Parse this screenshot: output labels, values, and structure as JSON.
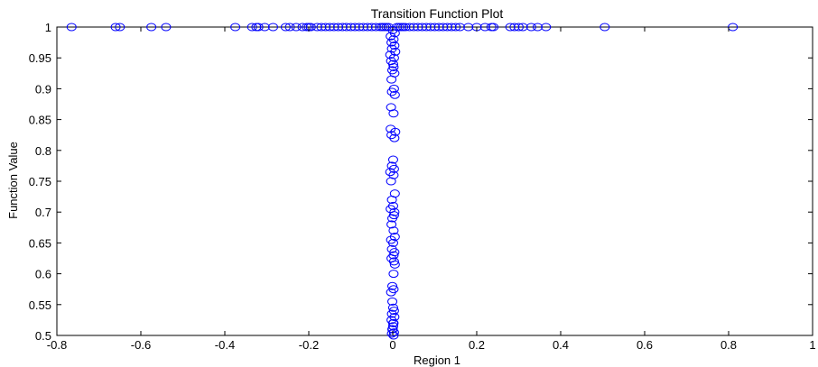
{
  "chart_data": {
    "type": "scatter",
    "title": "Transition Function Plot",
    "xlabel": "Region 1",
    "ylabel": "Function Value",
    "xlim": [
      -0.8,
      1
    ],
    "ylim": [
      0.5,
      1
    ],
    "xticks": [
      -0.8,
      -0.6,
      -0.4,
      -0.2,
      0,
      0.2,
      0.4,
      0.6,
      0.8,
      1
    ],
    "xtick_labels": [
      "-0.8",
      "-0.6",
      "-0.4",
      "-0.2",
      "0",
      "0.2",
      "0.4",
      "0.6",
      "0.8",
      "1"
    ],
    "yticks": [
      0.5,
      0.55,
      0.6,
      0.65,
      0.7,
      0.75,
      0.8,
      0.85,
      0.9,
      0.95,
      1
    ],
    "ytick_labels": [
      "0.5",
      "0.55",
      "0.6",
      "0.65",
      "0.7",
      "0.75",
      "0.8",
      "0.85",
      "0.9",
      "0.95",
      "1"
    ],
    "grid": false,
    "marker": "open-circle",
    "marker_color": "#0000ff",
    "series": [
      {
        "x": [
          -0.765,
          -0.66,
          -0.65,
          -0.575,
          -0.54,
          -0.375,
          -0.335,
          -0.325,
          -0.32,
          -0.305,
          -0.285,
          -0.255,
          -0.245,
          -0.23,
          -0.215,
          -0.205,
          -0.2,
          -0.195,
          -0.18,
          -0.17,
          -0.16,
          -0.15,
          -0.14,
          -0.13,
          -0.12,
          -0.11,
          -0.1,
          -0.09,
          -0.08,
          -0.07,
          -0.06,
          -0.05,
          -0.04,
          -0.03,
          -0.025,
          -0.02,
          -0.015,
          -0.01,
          0.01,
          0.015,
          0.02,
          0.025,
          0.03,
          0.04,
          0.05,
          0.06,
          0.07,
          0.08,
          0.09,
          0.1,
          0.11,
          0.12,
          0.13,
          0.14,
          0.15,
          0.16,
          0.18,
          0.2,
          0.22,
          0.235,
          0.24,
          0.28,
          0.29,
          0.3,
          0.31,
          0.33,
          0.345,
          0.365,
          0.505,
          0.81,
          0.0,
          0.005,
          -0.005,
          0.002,
          -0.003,
          0.004,
          -0.002,
          0.006,
          -0.006,
          0.003,
          -0.004,
          0.001,
          0.002,
          -0.001,
          0.004,
          -0.003,
          0.003,
          -0.002,
          0.005,
          -0.004,
          0.002,
          -0.005,
          0.006,
          -0.003,
          0.004,
          0.001,
          -0.002,
          0.003,
          -0.006,
          0.002,
          -0.004,
          0.005,
          -0.002,
          0.001,
          -0.005,
          0.004,
          0.003,
          -0.001,
          -0.003,
          0.002,
          0.005,
          -0.004,
          0.001,
          -0.002,
          0.004,
          0.002,
          -0.003,
          0.003,
          0.005,
          -0.001,
          0.002,
          -0.004,
          0.001,
          0.003,
          -0.002,
          0.004,
          -0.003,
          0.002,
          0.001,
          -0.001,
          0.003,
          -0.002,
          0.002,
          0.0,
          0.001,
          -0.001,
          0.002
        ],
        "y": [
          1,
          1,
          1,
          1,
          1,
          1,
          1,
          1,
          1,
          1,
          1,
          1,
          1,
          1,
          1,
          1,
          1,
          1,
          1,
          1,
          1,
          1,
          1,
          1,
          1,
          1,
          1,
          1,
          1,
          1,
          1,
          1,
          1,
          1,
          1,
          1,
          1,
          1,
          1,
          1,
          1,
          1,
          1,
          1,
          1,
          1,
          1,
          1,
          1,
          1,
          1,
          1,
          1,
          1,
          1,
          1,
          1,
          1,
          1,
          1,
          1,
          1,
          1,
          1,
          1,
          1,
          1,
          1,
          1,
          1,
          0.995,
          0.99,
          0.985,
          0.98,
          0.975,
          0.97,
          0.965,
          0.96,
          0.955,
          0.95,
          0.945,
          0.94,
          0.935,
          0.93,
          0.925,
          0.915,
          0.9,
          0.895,
          0.89,
          0.87,
          0.86,
          0.835,
          0.83,
          0.825,
          0.82,
          0.785,
          0.775,
          0.77,
          0.765,
          0.76,
          0.75,
          0.73,
          0.72,
          0.71,
          0.705,
          0.7,
          0.695,
          0.69,
          0.68,
          0.67,
          0.66,
          0.655,
          0.65,
          0.64,
          0.635,
          0.63,
          0.625,
          0.62,
          0.615,
          0.58,
          0.575,
          0.57,
          0.545,
          0.54,
          0.535,
          0.53,
          0.525,
          0.52,
          0.515,
          0.51,
          0.505,
          0.503,
          0.5,
          0.51,
          0.52,
          0.555,
          0.6
        ]
      }
    ]
  }
}
